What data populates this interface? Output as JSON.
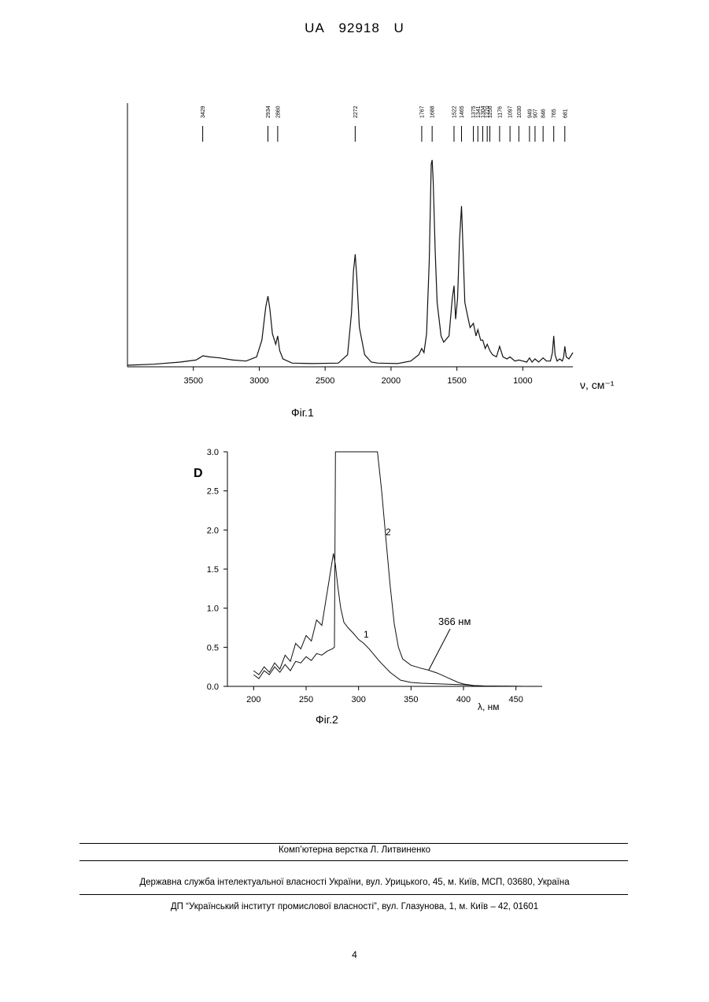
{
  "header": {
    "country": "UA",
    "number": "92918",
    "kind": "U"
  },
  "figure1": {
    "caption": "Фіг.1",
    "chart_data": {
      "type": "line",
      "title": "",
      "xlabel": "ν, см⁻¹",
      "ylabel": "",
      "x_reversed": true,
      "xlim": [
        4000,
        620
      ],
      "x_ticks": [
        "3500",
        "3000",
        "2500",
        "2000",
        "1500",
        "1000"
      ],
      "peak_labels": [
        "3429",
        "2934",
        "2860",
        "2272",
        "1767",
        "1688",
        "1522",
        "1465",
        "1375",
        "1341",
        "1304",
        "1270",
        "1250",
        "1176",
        "1097",
        "1030",
        "949",
        "907",
        "846",
        "765",
        "681"
      ],
      "series": [
        {
          "x": [
            4000,
            3800,
            3600,
            3480,
            3440,
            3429,
            3380,
            3300,
            3200,
            3100,
            3020,
            2980,
            2950,
            2934,
            2920,
            2900,
            2875,
            2860,
            2845,
            2820,
            2750,
            2600,
            2400,
            2330,
            2300,
            2285,
            2272,
            2260,
            2240,
            2200,
            2150,
            2100,
            1950,
            1850,
            1790,
            1767,
            1750,
            1730,
            1710,
            1695,
            1688,
            1680,
            1665,
            1650,
            1620,
            1600,
            1560,
            1535,
            1522,
            1510,
            1495,
            1480,
            1465,
            1455,
            1440,
            1420,
            1400,
            1375,
            1355,
            1341,
            1320,
            1304,
            1285,
            1270,
            1250,
            1230,
            1200,
            1176,
            1150,
            1120,
            1097,
            1060,
            1030,
            1000,
            970,
            949,
            930,
            907,
            880,
            846,
            820,
            790,
            775,
            765,
            755,
            740,
            720,
            700,
            690,
            681,
            670,
            650,
            620
          ],
          "y": [
            0,
            0.005,
            0.015,
            0.025,
            0.04,
            0.045,
            0.04,
            0.035,
            0.025,
            0.02,
            0.04,
            0.12,
            0.28,
            0.33,
            0.27,
            0.15,
            0.1,
            0.14,
            0.07,
            0.03,
            0.01,
            0.008,
            0.01,
            0.05,
            0.25,
            0.45,
            0.53,
            0.42,
            0.18,
            0.05,
            0.015,
            0.01,
            0.008,
            0.02,
            0.05,
            0.08,
            0.06,
            0.15,
            0.5,
            0.96,
            0.98,
            0.88,
            0.55,
            0.3,
            0.14,
            0.11,
            0.14,
            0.32,
            0.38,
            0.22,
            0.32,
            0.6,
            0.76,
            0.58,
            0.3,
            0.24,
            0.18,
            0.2,
            0.14,
            0.17,
            0.12,
            0.12,
            0.08,
            0.1,
            0.07,
            0.05,
            0.04,
            0.09,
            0.04,
            0.03,
            0.04,
            0.02,
            0.025,
            0.02,
            0.015,
            0.035,
            0.015,
            0.03,
            0.015,
            0.035,
            0.02,
            0.02,
            0.06,
            0.14,
            0.05,
            0.02,
            0.03,
            0.02,
            0.04,
            0.09,
            0.04,
            0.03,
            0.06
          ]
        }
      ]
    }
  },
  "figure2": {
    "caption": "Фіг.2",
    "chart_data": {
      "type": "line",
      "title": "",
      "xlabel": "λ, нм",
      "ylabel": "D",
      "xlim": [
        175,
        475
      ],
      "ylim": [
        0,
        3.0
      ],
      "x_ticks": [
        "200",
        "250",
        "300",
        "350",
        "400",
        "450"
      ],
      "y_ticks": [
        "0.0",
        "0.5",
        "1.0",
        "1.5",
        "2.0",
        "2.5",
        "3.0"
      ],
      "annotation": "366 нм",
      "series": [
        {
          "name": "1",
          "x": [
            200,
            205,
            210,
            215,
            220,
            225,
            230,
            235,
            240,
            245,
            250,
            255,
            260,
            265,
            270,
            273,
            276,
            278,
            280,
            283,
            286,
            290,
            295,
            300,
            305,
            310,
            315,
            320,
            330,
            340,
            350,
            360,
            370,
            380,
            390,
            400,
            410,
            420,
            440,
            460
          ],
          "y": [
            0.2,
            0.15,
            0.25,
            0.18,
            0.3,
            0.22,
            0.4,
            0.32,
            0.55,
            0.48,
            0.65,
            0.58,
            0.85,
            0.78,
            1.2,
            1.45,
            1.7,
            1.55,
            1.3,
            1.0,
            0.82,
            0.75,
            0.68,
            0.6,
            0.55,
            0.48,
            0.4,
            0.32,
            0.18,
            0.08,
            0.05,
            0.04,
            0.035,
            0.03,
            0.025,
            0.02,
            0.01,
            0.005,
            0.002,
            0
          ]
        },
        {
          "name": "2",
          "x": [
            200,
            205,
            210,
            215,
            220,
            225,
            230,
            235,
            240,
            245,
            250,
            255,
            260,
            265,
            270,
            275,
            277,
            278,
            300,
            318,
            322,
            326,
            330,
            334,
            338,
            342,
            350,
            360,
            366,
            375,
            385,
            395,
            400,
            405,
            410,
            420,
            440,
            460
          ],
          "y": [
            0.15,
            0.1,
            0.2,
            0.15,
            0.25,
            0.18,
            0.28,
            0.2,
            0.32,
            0.3,
            0.38,
            0.33,
            0.42,
            0.4,
            0.45,
            0.48,
            0.5,
            3.0,
            3.0,
            3.0,
            2.5,
            1.9,
            1.3,
            0.8,
            0.5,
            0.35,
            0.27,
            0.23,
            0.21,
            0.17,
            0.11,
            0.05,
            0.03,
            0.02,
            0.01,
            0.005,
            0.002,
            0
          ]
        }
      ]
    }
  },
  "footer": {
    "typesetting": "Комп’ютерна верстка Л. Литвиненко",
    "office": "Державна служба інтелектуальної власності України, вул. Урицького, 45, м. Київ, МСП, 03680, Україна",
    "institute": "ДП “Український інститут промислової власності”, вул. Глазунова, 1, м. Київ – 42, 01601",
    "page_number": "4"
  }
}
